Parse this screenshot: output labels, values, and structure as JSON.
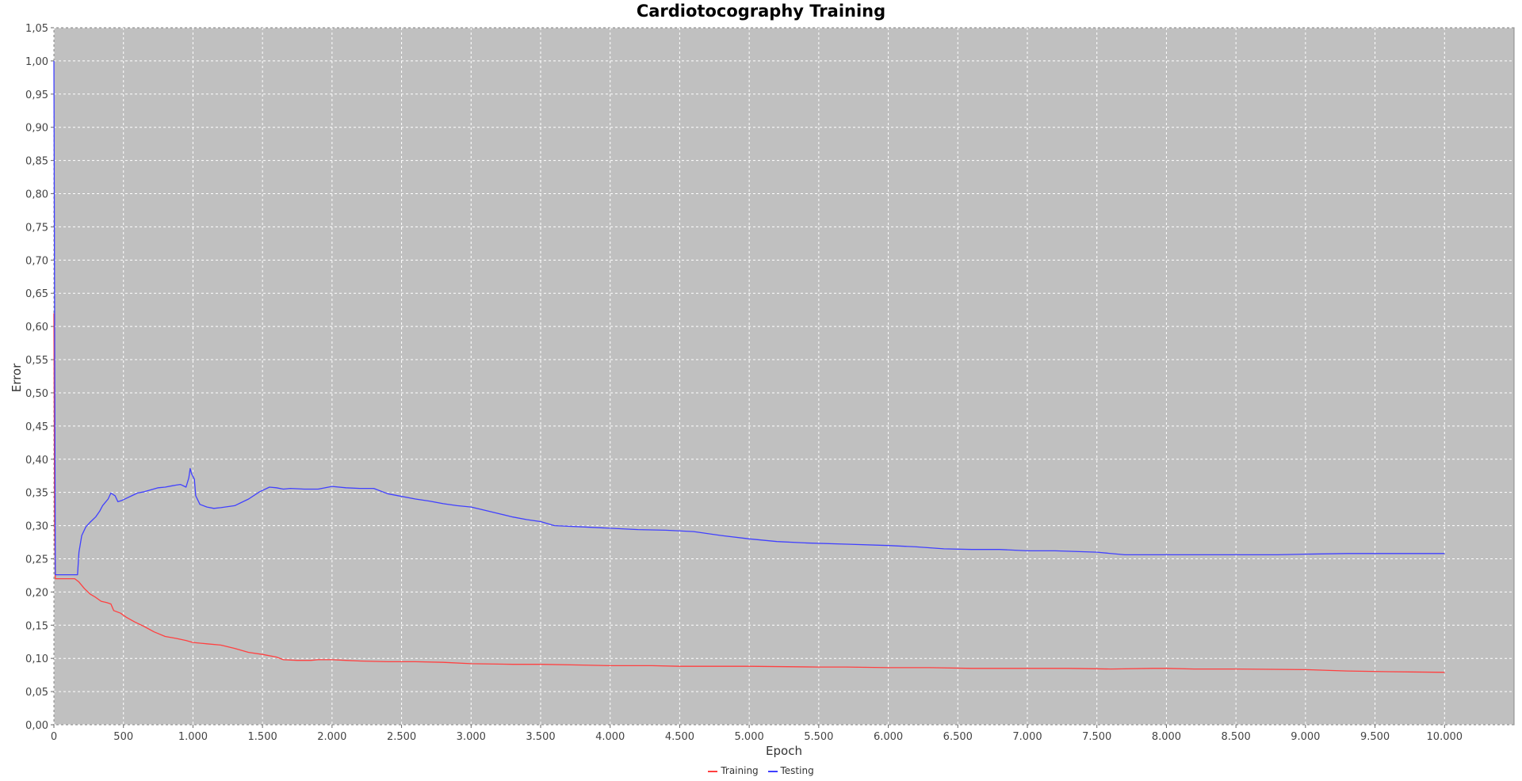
{
  "chart_data": {
    "type": "line",
    "title": "Cardiotocography Training",
    "xlabel": "Epoch",
    "ylabel": "Error",
    "xlim": [
      0,
      10500
    ],
    "ylim": [
      0,
      1.05
    ],
    "grid": true,
    "legend_position": "bottom",
    "background_color": "#c0c0c0",
    "grid_color": "#ffffff",
    "x_ticks": [
      {
        "value": 0,
        "label": "0"
      },
      {
        "value": 500,
        "label": "500"
      },
      {
        "value": 1000,
        "label": "1.000"
      },
      {
        "value": 1500,
        "label": "1.500"
      },
      {
        "value": 2000,
        "label": "2.000"
      },
      {
        "value": 2500,
        "label": "2.500"
      },
      {
        "value": 3000,
        "label": "3.000"
      },
      {
        "value": 3500,
        "label": "3.500"
      },
      {
        "value": 4000,
        "label": "4.000"
      },
      {
        "value": 4500,
        "label": "4.500"
      },
      {
        "value": 5000,
        "label": "5.000"
      },
      {
        "value": 5500,
        "label": "5.500"
      },
      {
        "value": 6000,
        "label": "6.000"
      },
      {
        "value": 6500,
        "label": "6.500"
      },
      {
        "value": 7000,
        "label": "7.000"
      },
      {
        "value": 7500,
        "label": "7.500"
      },
      {
        "value": 8000,
        "label": "8.000"
      },
      {
        "value": 8500,
        "label": "8.500"
      },
      {
        "value": 9000,
        "label": "9.000"
      },
      {
        "value": 9500,
        "label": "9.500"
      },
      {
        "value": 10000,
        "label": "10.000"
      }
    ],
    "y_ticks": [
      {
        "value": 0.0,
        "label": "0,00"
      },
      {
        "value": 0.05,
        "label": "0,05"
      },
      {
        "value": 0.1,
        "label": "0,10"
      },
      {
        "value": 0.15,
        "label": "0,15"
      },
      {
        "value": 0.2,
        "label": "0,20"
      },
      {
        "value": 0.25,
        "label": "0,25"
      },
      {
        "value": 0.3,
        "label": "0,30"
      },
      {
        "value": 0.35,
        "label": "0,35"
      },
      {
        "value": 0.4,
        "label": "0,40"
      },
      {
        "value": 0.45,
        "label": "0,45"
      },
      {
        "value": 0.5,
        "label": "0,50"
      },
      {
        "value": 0.55,
        "label": "0,55"
      },
      {
        "value": 0.6,
        "label": "0,60"
      },
      {
        "value": 0.65,
        "label": "0,65"
      },
      {
        "value": 0.7,
        "label": "0,70"
      },
      {
        "value": 0.75,
        "label": "0,75"
      },
      {
        "value": 0.8,
        "label": "0,80"
      },
      {
        "value": 0.85,
        "label": "0,85"
      },
      {
        "value": 0.9,
        "label": "0,90"
      },
      {
        "value": 0.95,
        "label": "0,95"
      },
      {
        "value": 1.0,
        "label": "1,00"
      },
      {
        "value": 1.05,
        "label": "1,05"
      }
    ],
    "series": [
      {
        "name": "Training",
        "color": "#ff4040",
        "points": [
          [
            0,
            0.62
          ],
          [
            5,
            0.3
          ],
          [
            10,
            0.22
          ],
          [
            150,
            0.22
          ],
          [
            180,
            0.215
          ],
          [
            220,
            0.205
          ],
          [
            260,
            0.197
          ],
          [
            300,
            0.192
          ],
          [
            340,
            0.186
          ],
          [
            380,
            0.184
          ],
          [
            410,
            0.182
          ],
          [
            430,
            0.172
          ],
          [
            480,
            0.168
          ],
          [
            520,
            0.162
          ],
          [
            580,
            0.155
          ],
          [
            650,
            0.148
          ],
          [
            720,
            0.14
          ],
          [
            800,
            0.133
          ],
          [
            880,
            0.13
          ],
          [
            950,
            0.127
          ],
          [
            1000,
            0.124
          ],
          [
            1100,
            0.122
          ],
          [
            1200,
            0.12
          ],
          [
            1300,
            0.115
          ],
          [
            1400,
            0.109
          ],
          [
            1500,
            0.106
          ],
          [
            1600,
            0.102
          ],
          [
            1650,
            0.098
          ],
          [
            1750,
            0.097
          ],
          [
            1850,
            0.097
          ],
          [
            1900,
            0.098
          ],
          [
            2000,
            0.098
          ],
          [
            2100,
            0.097
          ],
          [
            2200,
            0.096
          ],
          [
            2400,
            0.095
          ],
          [
            2600,
            0.095
          ],
          [
            2800,
            0.094
          ],
          [
            3000,
            0.092
          ],
          [
            3300,
            0.091
          ],
          [
            3500,
            0.091
          ],
          [
            3800,
            0.09
          ],
          [
            4000,
            0.089
          ],
          [
            4300,
            0.089
          ],
          [
            4500,
            0.088
          ],
          [
            4800,
            0.088
          ],
          [
            5000,
            0.088
          ],
          [
            5500,
            0.087
          ],
          [
            5700,
            0.087
          ],
          [
            6000,
            0.086
          ],
          [
            6300,
            0.086
          ],
          [
            6600,
            0.085
          ],
          [
            7000,
            0.085
          ],
          [
            7300,
            0.085
          ],
          [
            7600,
            0.084
          ],
          [
            7900,
            0.085
          ],
          [
            8000,
            0.085
          ],
          [
            8200,
            0.084
          ],
          [
            8500,
            0.084
          ],
          [
            9000,
            0.083
          ],
          [
            9300,
            0.081
          ],
          [
            9600,
            0.08
          ],
          [
            10000,
            0.079
          ]
        ]
      },
      {
        "name": "Testing",
        "color": "#4040ff",
        "points": [
          [
            0,
            1.0
          ],
          [
            10,
            0.226
          ],
          [
            150,
            0.226
          ],
          [
            170,
            0.226
          ],
          [
            180,
            0.26
          ],
          [
            200,
            0.285
          ],
          [
            230,
            0.298
          ],
          [
            260,
            0.305
          ],
          [
            300,
            0.313
          ],
          [
            330,
            0.322
          ],
          [
            350,
            0.33
          ],
          [
            370,
            0.335
          ],
          [
            390,
            0.34
          ],
          [
            410,
            0.349
          ],
          [
            440,
            0.345
          ],
          [
            460,
            0.336
          ],
          [
            490,
            0.338
          ],
          [
            520,
            0.341
          ],
          [
            560,
            0.345
          ],
          [
            600,
            0.349
          ],
          [
            650,
            0.351
          ],
          [
            700,
            0.354
          ],
          [
            750,
            0.357
          ],
          [
            800,
            0.358
          ],
          [
            850,
            0.36
          ],
          [
            880,
            0.361
          ],
          [
            910,
            0.362
          ],
          [
            950,
            0.358
          ],
          [
            970,
            0.372
          ],
          [
            980,
            0.386
          ],
          [
            990,
            0.378
          ],
          [
            1010,
            0.37
          ],
          [
            1020,
            0.345
          ],
          [
            1050,
            0.332
          ],
          [
            1100,
            0.328
          ],
          [
            1150,
            0.326
          ],
          [
            1200,
            0.327
          ],
          [
            1300,
            0.33
          ],
          [
            1400,
            0.34
          ],
          [
            1480,
            0.351
          ],
          [
            1550,
            0.358
          ],
          [
            1600,
            0.357
          ],
          [
            1650,
            0.355
          ],
          [
            1700,
            0.356
          ],
          [
            1800,
            0.355
          ],
          [
            1900,
            0.355
          ],
          [
            2000,
            0.359
          ],
          [
            2100,
            0.357
          ],
          [
            2200,
            0.356
          ],
          [
            2300,
            0.356
          ],
          [
            2400,
            0.348
          ],
          [
            2500,
            0.344
          ],
          [
            2600,
            0.34
          ],
          [
            2700,
            0.337
          ],
          [
            2800,
            0.333
          ],
          [
            2900,
            0.33
          ],
          [
            3000,
            0.328
          ],
          [
            3100,
            0.323
          ],
          [
            3200,
            0.318
          ],
          [
            3300,
            0.313
          ],
          [
            3400,
            0.309
          ],
          [
            3500,
            0.306
          ],
          [
            3600,
            0.3
          ],
          [
            3800,
            0.298
          ],
          [
            4000,
            0.296
          ],
          [
            4200,
            0.294
          ],
          [
            4400,
            0.293
          ],
          [
            4600,
            0.291
          ],
          [
            4800,
            0.285
          ],
          [
            5000,
            0.28
          ],
          [
            5200,
            0.276
          ],
          [
            5400,
            0.274
          ],
          [
            5700,
            0.272
          ],
          [
            6000,
            0.27
          ],
          [
            6200,
            0.268
          ],
          [
            6400,
            0.265
          ],
          [
            6600,
            0.264
          ],
          [
            6800,
            0.264
          ],
          [
            7000,
            0.262
          ],
          [
            7200,
            0.262
          ],
          [
            7500,
            0.26
          ],
          [
            7700,
            0.256
          ],
          [
            8000,
            0.256
          ],
          [
            8300,
            0.256
          ],
          [
            8600,
            0.256
          ],
          [
            8800,
            0.256
          ],
          [
            9000,
            0.257
          ],
          [
            9300,
            0.258
          ],
          [
            9600,
            0.258
          ],
          [
            9800,
            0.258
          ],
          [
            10000,
            0.258
          ]
        ]
      }
    ]
  }
}
